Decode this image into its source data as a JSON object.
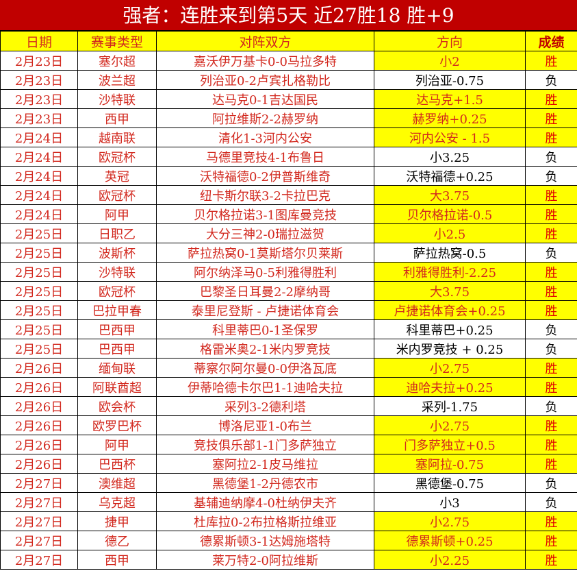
{
  "title": "强者：连胜来到第5天 近27胜18 胜+9",
  "colors": {
    "title_bg": "#c00000",
    "highlight": "#ffff00",
    "text_red": "#d2281e"
  },
  "headers": [
    "日期",
    "赛事类型",
    "对阵双方",
    "方向",
    "成绩"
  ],
  "rows": [
    {
      "date": "2月23日",
      "league": "塞尔超",
      "match": "嘉沃伊万基卡0-0马拉多特",
      "pick": "小2",
      "result": "胜"
    },
    {
      "date": "2月23日",
      "league": "波兰超",
      "match": "列治亚0-2卢宾扎格勒比",
      "pick": "列治亚-0.75",
      "result": "负"
    },
    {
      "date": "2月23日",
      "league": "沙特联",
      "match": "达马克0-1吉达国民",
      "pick": "达马克+1.5",
      "result": "胜"
    },
    {
      "date": "2月23日",
      "league": "西甲",
      "match": "阿拉维斯2-2赫罗纳",
      "pick": "赫罗纳+0.25",
      "result": "胜"
    },
    {
      "date": "2月24日",
      "league": "越南联",
      "match": "清化1-3河内公安",
      "pick": "河内公安 - 1.5",
      "result": "胜"
    },
    {
      "date": "2月24日",
      "league": "欧冠杯",
      "match": "马德里竞技4-1布鲁日",
      "pick": "小3.25",
      "result": "负"
    },
    {
      "date": "2月24日",
      "league": "英冠",
      "match": "沃特福德0-2伊普斯维奇",
      "pick": "沃特福德+0.25",
      "result": "负"
    },
    {
      "date": "2月24日",
      "league": "欧冠杯",
      "match": "纽卡斯尔联3-2卡拉巴克",
      "pick": "大3.75",
      "result": "胜"
    },
    {
      "date": "2月24日",
      "league": "阿甲",
      "match": "贝尔格拉诺3-1图库曼竞技",
      "pick": "贝尔格拉诺-0.5",
      "result": "胜"
    },
    {
      "date": "2月25日",
      "league": "日职乙",
      "match": "大分三神2-0瑞拉滋贺",
      "pick": "小2.5",
      "result": "胜"
    },
    {
      "date": "2月25日",
      "league": "波斯杯",
      "match": "萨拉热窝0-1莫斯塔尔贝莱斯",
      "pick": "萨拉热窝-0.5",
      "result": "负"
    },
    {
      "date": "2月25日",
      "league": "沙特联",
      "match": "阿尔纳泽马0-5利雅得胜利",
      "pick": "利雅得胜利-2.25",
      "result": "胜"
    },
    {
      "date": "2月25日",
      "league": "欧冠杯",
      "match": "巴黎圣日耳曼2-2摩纳哥",
      "pick": "大3.75",
      "result": "胜"
    },
    {
      "date": "2月25日",
      "league": "巴拉甲春",
      "match": "泰里尼登斯 - 卢捷诺体育会",
      "pick": "卢捷诺体育会+0.25",
      "result": "胜"
    },
    {
      "date": "2月25日",
      "league": "巴西甲",
      "match": "科里蒂巴0-1圣保罗",
      "pick": "科里蒂巴+0.25",
      "result": "负"
    },
    {
      "date": "2月25日",
      "league": "巴西甲",
      "match": "格雷米奥2-1米内罗竞技",
      "pick": "米内罗竞技 + 0.25",
      "result": "负"
    },
    {
      "date": "2月26日",
      "league": "缅甸联",
      "match": "蒂察尔阿尔曼0-0伊洛瓦底",
      "pick": "小2.75",
      "result": "胜"
    },
    {
      "date": "2月26日",
      "league": "阿联酋超",
      "match": "伊蒂哈德卡尔巴1-1迪哈夫拉",
      "pick": "迪哈夫拉+0.25",
      "result": "胜"
    },
    {
      "date": "2月26日",
      "league": "欧会杯",
      "match": "采列3-2德利塔",
      "pick": "采列-1.75",
      "result": "负"
    },
    {
      "date": "2月26日",
      "league": "欧罗巴杯",
      "match": "博洛尼亚1-0布兰",
      "pick": "小2.75",
      "result": "胜"
    },
    {
      "date": "2月26日",
      "league": "阿甲",
      "match": "竞技俱乐部1-1门多萨独立",
      "pick": "门多萨独立+0.5",
      "result": "胜"
    },
    {
      "date": "2月26日",
      "league": "巴西杯",
      "match": "塞阿拉2-1皮马维拉",
      "pick": "塞阿拉-0.75",
      "result": "胜"
    },
    {
      "date": "2月27日",
      "league": "澳维超",
      "match": "黑德堡1-2丹德农市",
      "pick": "黑德堡-0.75",
      "result": "负"
    },
    {
      "date": "2月27日",
      "league": "乌克超",
      "match": "基辅迪纳摩4-0杜纳伊夫齐",
      "pick": "小3",
      "result": "负"
    },
    {
      "date": "2月27日",
      "league": "捷甲",
      "match": "杜库拉0-2布拉格斯拉维亚",
      "pick": "小2.75",
      "result": "胜"
    },
    {
      "date": "2月27日",
      "league": "德乙",
      "match": "德累斯顿3-1达姆施塔特",
      "pick": "德累斯顿+0.25",
      "result": "胜"
    },
    {
      "date": "2月27日",
      "league": "西甲",
      "match": "莱万特2-0阿拉维斯",
      "pick": "小2.25",
      "result": "胜"
    }
  ]
}
